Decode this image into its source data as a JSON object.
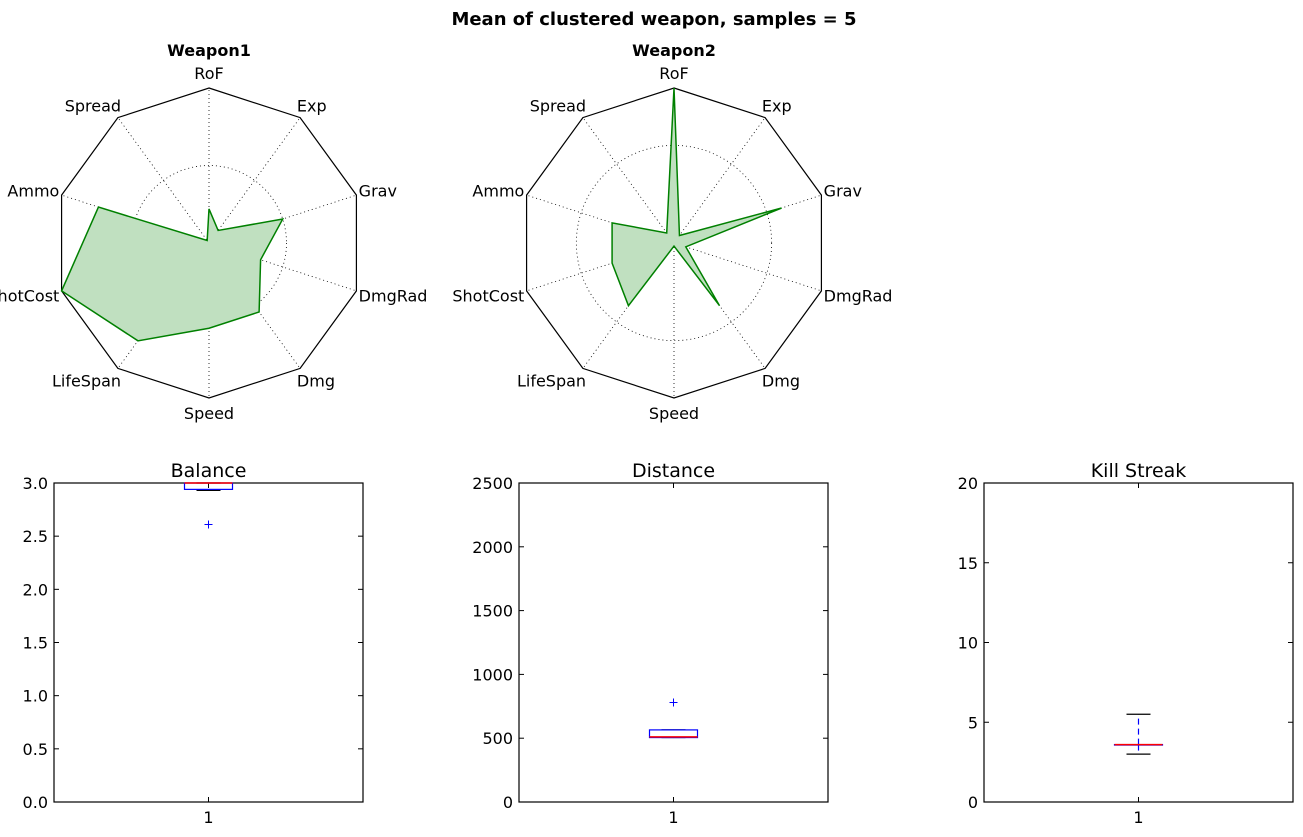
{
  "figure": {
    "title": "Mean of clustered weapon, samples = 5"
  },
  "chart_data": [
    {
      "type": "radar",
      "title": "Weapon1",
      "axes": [
        "RoF",
        "Exp",
        "Grav",
        "DmgRad",
        "Dmg",
        "Speed",
        "LifeSpan",
        "ShotCost",
        "Ammo",
        "Spread"
      ],
      "rmax": 1.0,
      "grid_circle": 0.5,
      "values": [
        0.22,
        0.1,
        0.5,
        0.35,
        0.55,
        0.55,
        0.78,
        1.0,
        0.75,
        0.02
      ],
      "color": "#008000",
      "fill": "#c0e0c0"
    },
    {
      "type": "radar",
      "title": "Weapon2",
      "axes": [
        "RoF",
        "Exp",
        "Grav",
        "DmgRad",
        "Dmg",
        "Speed",
        "LifeSpan",
        "ShotCost",
        "Ammo",
        "Spread"
      ],
      "rmax": 1.0,
      "grid_circle": 0.63,
      "values": [
        1.0,
        0.06,
        0.73,
        0.08,
        0.5,
        0.02,
        0.5,
        0.42,
        0.42,
        0.08
      ],
      "color": "#008000",
      "fill": "#c0e0c0"
    },
    {
      "type": "box",
      "title": "Balance",
      "categories": [
        "1"
      ],
      "ylim": [
        0,
        3.0
      ],
      "yticks": [
        "0.0",
        "0.5",
        "1.0",
        "1.5",
        "2.0",
        "2.5",
        "3.0"
      ],
      "ytick_values": [
        0,
        0.5,
        1.0,
        1.5,
        2.0,
        2.5,
        3.0
      ],
      "q1": 2.94,
      "median": 3.0,
      "q3": 3.0,
      "whisker_low": 2.93,
      "whisker_high": 3.0,
      "fliers": [
        2.61
      ]
    },
    {
      "type": "box",
      "title": "Distance",
      "categories": [
        "1"
      ],
      "ylim": [
        0,
        2500
      ],
      "yticks": [
        "0",
        "500",
        "1000",
        "1500",
        "2000",
        "2500"
      ],
      "ytick_values": [
        0,
        500,
        1000,
        1500,
        2000,
        2500
      ],
      "q1": 505,
      "median": 510,
      "q3": 565,
      "whisker_low": 505,
      "whisker_high": 565,
      "fliers": [
        780
      ]
    },
    {
      "type": "box",
      "title": "Kill Streak",
      "categories": [
        "1"
      ],
      "ylim": [
        0,
        20
      ],
      "yticks": [
        "0",
        "5",
        "10",
        "15",
        "20"
      ],
      "ytick_values": [
        0,
        5,
        10,
        15,
        20
      ],
      "q1": 3.6,
      "median": 3.6,
      "q3": 3.6,
      "whisker_low": 3.0,
      "whisker_high": 5.5,
      "fliers": []
    }
  ],
  "colors": {
    "axis": "#000000",
    "grid": "#000000",
    "box": "#0000ff",
    "median": "#ff0000",
    "whisker_cap": "#000000",
    "flier": "#0000ff"
  }
}
